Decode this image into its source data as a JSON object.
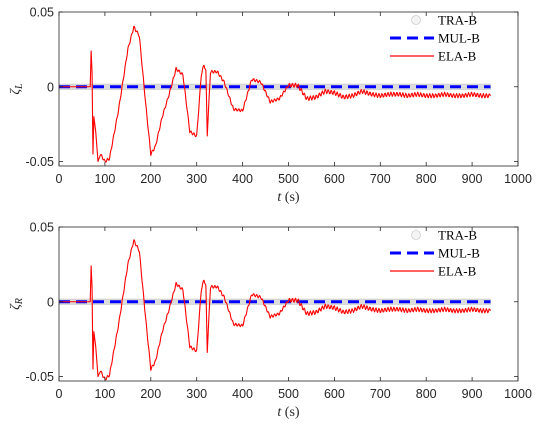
{
  "chart_data": [
    {
      "type": "line",
      "ylabel_symbol": "ζ",
      "ylabel_sub": "L",
      "xlabel_var": "t",
      "xlabel_unit": " (s)",
      "xlim": [
        0,
        1000
      ],
      "ylim": [
        -0.053,
        0.05
      ],
      "x_ticks": [
        0,
        100,
        200,
        300,
        400,
        500,
        600,
        700,
        800,
        900,
        1000
      ],
      "y_ticks": [
        -0.05,
        0,
        0.05
      ],
      "y_tick_labels": [
        "-0.05",
        "0",
        "0.05"
      ],
      "grid": false,
      "legend_position": "top-right",
      "series": [
        {
          "name": "TRA-B",
          "color": "#d0d0d0",
          "style": "band",
          "x": [
            0,
            940
          ],
          "y": [
            0,
            0
          ]
        },
        {
          "name": "MUL-B",
          "color": "#0000ff",
          "style": "dashed",
          "x": [
            0,
            940
          ],
          "y": [
            0,
            0
          ]
        },
        {
          "name": "ELA-B",
          "color": "#ff0000",
          "style": "solid",
          "x": [
            0,
            68,
            70,
            72,
            74,
            76,
            80,
            85,
            90,
            100,
            110,
            130,
            150,
            163,
            175,
            190,
            200,
            210,
            225,
            240,
            255,
            270,
            285,
            300,
            310,
            316,
            320,
            323,
            330,
            345,
            360,
            380,
            400,
            420,
            440,
            460,
            480,
            500,
            520,
            540,
            560,
            580,
            600,
            620,
            640,
            660,
            680,
            700,
            720,
            740,
            760,
            780,
            800,
            820,
            840,
            860,
            880,
            900,
            920,
            940
          ],
          "y": [
            0,
            0,
            0.024,
            0.01,
            -0.045,
            -0.02,
            -0.03,
            -0.05,
            -0.045,
            -0.05,
            -0.048,
            -0.015,
            0.025,
            0.04,
            0.034,
            -0.015,
            -0.045,
            -0.04,
            -0.02,
            -0.005,
            0.012,
            0.008,
            -0.03,
            -0.033,
            0.008,
            0.015,
            0.01,
            -0.032,
            0.01,
            0.01,
            0.003,
            -0.015,
            -0.016,
            0.005,
            0.003,
            -0.01,
            -0.008,
            0.001,
            0.001,
            -0.008,
            -0.007,
            -0.003,
            -0.004,
            -0.007,
            -0.006,
            -0.003,
            -0.005,
            -0.006,
            -0.005,
            -0.005,
            -0.006,
            -0.005,
            -0.006,
            -0.006,
            -0.005,
            -0.006,
            -0.006,
            -0.005,
            -0.006,
            -0.006
          ],
          "ripple": 0.0012
        }
      ]
    },
    {
      "type": "line",
      "ylabel_symbol": "ζ",
      "ylabel_sub": "R",
      "xlabel_var": "t",
      "xlabel_unit": " (s)",
      "xlim": [
        0,
        1000
      ],
      "ylim": [
        -0.053,
        0.05
      ],
      "x_ticks": [
        0,
        100,
        200,
        300,
        400,
        500,
        600,
        700,
        800,
        900,
        1000
      ],
      "y_ticks": [
        -0.05,
        0,
        0.05
      ],
      "y_tick_labels": [
        "-0.05",
        "0",
        "0.05"
      ],
      "grid": false,
      "legend_position": "top-right",
      "series": [
        {
          "name": "TRA-B",
          "color": "#d0d0d0",
          "style": "band",
          "x": [
            0,
            940
          ],
          "y": [
            0,
            0
          ]
        },
        {
          "name": "MUL-B",
          "color": "#0000ff",
          "style": "dashed",
          "x": [
            0,
            940
          ],
          "y": [
            0,
            0
          ]
        },
        {
          "name": "ELA-B",
          "color": "#ff0000",
          "style": "solid",
          "x": [
            0,
            68,
            70,
            72,
            74,
            76,
            80,
            85,
            90,
            100,
            110,
            130,
            150,
            163,
            175,
            190,
            200,
            210,
            225,
            240,
            255,
            270,
            285,
            300,
            310,
            316,
            320,
            323,
            330,
            345,
            360,
            380,
            400,
            420,
            440,
            460,
            480,
            500,
            520,
            540,
            560,
            580,
            600,
            620,
            640,
            660,
            680,
            700,
            720,
            740,
            760,
            780,
            800,
            820,
            840,
            860,
            880,
            900,
            920,
            940
          ],
          "y": [
            0,
            0,
            0.024,
            0.01,
            -0.045,
            -0.02,
            -0.03,
            -0.05,
            -0.046,
            -0.052,
            -0.049,
            -0.015,
            0.025,
            0.041,
            0.034,
            -0.015,
            -0.045,
            -0.04,
            -0.02,
            -0.005,
            0.012,
            0.008,
            -0.03,
            -0.033,
            0.008,
            0.015,
            0.01,
            -0.033,
            0.01,
            0.01,
            0.003,
            -0.015,
            -0.016,
            0.005,
            0.003,
            -0.01,
            -0.008,
            0.001,
            0.001,
            -0.008,
            -0.007,
            -0.003,
            -0.004,
            -0.007,
            -0.006,
            -0.003,
            -0.005,
            -0.006,
            -0.005,
            -0.005,
            -0.006,
            -0.005,
            -0.006,
            -0.006,
            -0.005,
            -0.006,
            -0.006,
            -0.005,
            -0.006,
            -0.006
          ],
          "ripple": 0.0012
        }
      ]
    }
  ]
}
